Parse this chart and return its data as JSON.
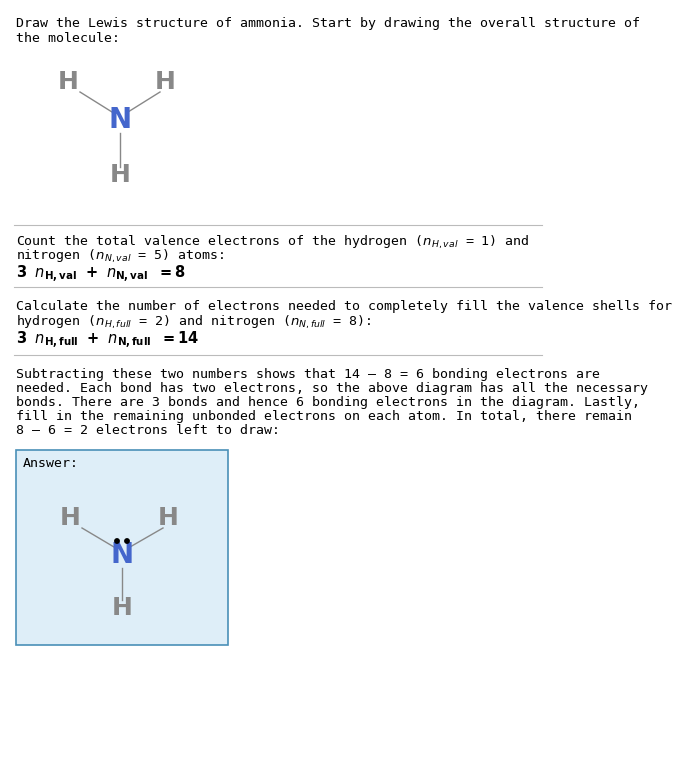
{
  "title_text1": "Draw the Lewis structure of ammonia. Start by drawing the overall structure of",
  "title_text2": "the molecule:",
  "bg_color": "#ffffff",
  "answer_bg": "#deeef8",
  "answer_border": "#4a90b8",
  "N_color": "#4466cc",
  "H_color": "#888888",
  "bond_color": "#888888",
  "line_color": "#bbbbbb",
  "s1_line1": "Count the total valence electrons of the hydrogen ($n_{H,val}$ = 1) and",
  "s1_line2": "nitrogen ($n_{N,val}$ = 5) atoms:",
  "s1_eq": "3 $n_{H,val}$ + $n_{N,val}$ = 8",
  "s2_line1": "Calculate the number of electrons needed to completely fill the valence shells for",
  "s2_line2": "hydrogen ($n_{H,full}$ = 2) and nitrogen ($n_{N,full}$ = 8):",
  "s2_eq": "3 $n_{H,full}$ + $n_{N,full}$ = 14",
  "s3_line1": "Subtracting these two numbers shows that 14 – 8 = 6 bonding electrons are",
  "s3_line2": "needed. Each bond has two electrons, so the above diagram has all the necessary",
  "s3_line3": "bonds. There are 3 bonds and hence 6 bonding electrons in the diagram. Lastly,",
  "s3_line4": "fill in the remaining unbonded electrons on each atom. In total, there remain",
  "s3_line5": "8 – 6 = 2 electrons left to draw:",
  "answer_label": "Answer:"
}
